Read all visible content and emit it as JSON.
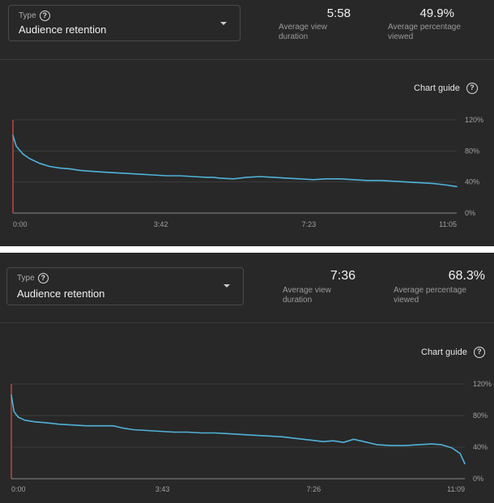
{
  "panels": [
    {
      "type_label": "Type",
      "type_value": "Audience retention",
      "metrics": [
        {
          "value": "5:58",
          "label": "Average view duration"
        },
        {
          "value": "49.9%",
          "label": "Average percentage viewed"
        }
      ],
      "chart_guide": "Chart guide",
      "help_glyph": "?"
    },
    {
      "type_label": "Type",
      "type_value": "Audience retention",
      "metrics": [
        {
          "value": "7:36",
          "label": "Average view duration"
        },
        {
          "value": "68.3%",
          "label": "Average percentage viewed"
        }
      ],
      "chart_guide": "Chart guide",
      "help_glyph": "?"
    }
  ],
  "colors": {
    "line": "#4fb3d9",
    "cursor": "#e25140",
    "gridline": "#3c3c3c",
    "baseline": "#8a8a8a"
  },
  "icons": [
    "help-circle-icon",
    "chevron-down-icon",
    "drag-handle-icon"
  ],
  "chart_data": [
    {
      "type": "line",
      "xlabel": "",
      "ylabel": "",
      "x_tick_labels": [
        "0:00",
        "3:42",
        "7:23",
        "11:05"
      ],
      "y_tick_labels": [
        "0%",
        "40%",
        "80%",
        "120%"
      ],
      "ylim": [
        0,
        120
      ],
      "x_range_seconds": [
        0,
        665
      ],
      "grid": true,
      "series": [
        {
          "x": [
            0,
            5,
            15,
            25,
            40,
            55,
            70,
            85,
            100,
            115,
            130,
            150,
            170,
            190,
            210,
            230,
            250,
            270,
            290,
            300,
            310,
            330,
            340,
            350,
            370,
            390,
            410,
            430,
            450,
            470,
            490,
            510,
            530,
            550,
            570,
            590,
            610,
            630,
            650,
            665
          ],
          "y": [
            100,
            86,
            76,
            70,
            64,
            60,
            58,
            57,
            55,
            54,
            53,
            52,
            51,
            50,
            49,
            48,
            48,
            47,
            46,
            46,
            45,
            44,
            45,
            46,
            47,
            46,
            45,
            44,
            43,
            44,
            44,
            43,
            42,
            42,
            41,
            40,
            39,
            38,
            36,
            34
          ]
        }
      ]
    },
    {
      "type": "line",
      "xlabel": "",
      "ylabel": "",
      "x_tick_labels": [
        "0:00",
        "3:43",
        "7:26",
        "11:09"
      ],
      "y_tick_labels": [
        "0%",
        "40%",
        "80%",
        "120%"
      ],
      "ylim": [
        0,
        120
      ],
      "x_range_seconds": [
        0,
        669
      ],
      "grid": true,
      "series": [
        {
          "x": [
            0,
            4,
            10,
            20,
            35,
            50,
            70,
            90,
            110,
            130,
            150,
            165,
            180,
            200,
            220,
            240,
            260,
            280,
            300,
            320,
            340,
            360,
            380,
            400,
            420,
            440,
            460,
            475,
            490,
            505,
            520,
            540,
            560,
            580,
            600,
            620,
            635,
            650,
            662,
            669
          ],
          "y": [
            106,
            85,
            78,
            74,
            72,
            71,
            69,
            68,
            67,
            67,
            67,
            64,
            62,
            61,
            60,
            59,
            59,
            58,
            58,
            57,
            56,
            55,
            54,
            53,
            51,
            49,
            47,
            48,
            46,
            50,
            47,
            43,
            42,
            42,
            43,
            44,
            43,
            39,
            32,
            19
          ]
        }
      ]
    }
  ]
}
